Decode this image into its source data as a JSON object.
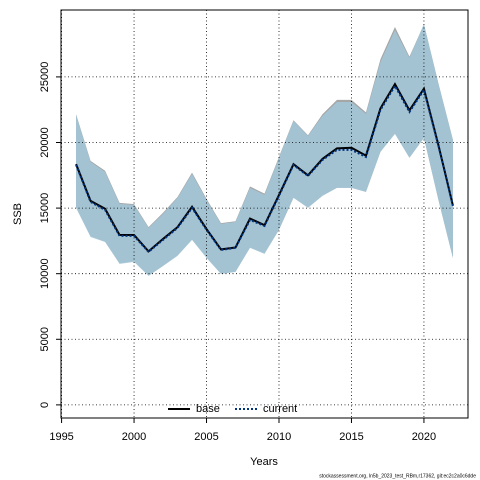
{
  "chart_data": {
    "type": "line",
    "xlabel": "Years",
    "ylabel": "SSB",
    "footnote": "stockassessment.org, ln5b_2023_test_RBm,r17362, git:ec2c2a0c6dde",
    "x": [
      1996,
      1997,
      1998,
      1999,
      2000,
      2001,
      2002,
      2003,
      2004,
      2005,
      2006,
      2007,
      2008,
      2009,
      2010,
      2011,
      2012,
      2013,
      2014,
      2015,
      2016,
      2017,
      2018,
      2019,
      2020,
      2021,
      2022
    ],
    "xlim": [
      1994.96,
      2023.04
    ],
    "xticks": [
      1995,
      2000,
      2005,
      2010,
      2015,
      2020
    ],
    "ylim": [
      -1000,
      30100
    ],
    "yticks": [
      0,
      5000,
      10000,
      15000,
      20000,
      25000
    ],
    "grid": true,
    "legend": "bottom",
    "series": [
      {
        "name": "base",
        "color": "#000000",
        "dash": "solid",
        "band_color": "#a6a6a6",
        "values": [
          18350,
          15550,
          14950,
          12950,
          12950,
          11700,
          12650,
          13550,
          15100,
          13400,
          11850,
          12000,
          14200,
          13700,
          16000,
          18350,
          17500,
          18750,
          19550,
          19600,
          19000,
          22600,
          24450,
          22450,
          24100,
          19800,
          15200
        ],
        "upper": [
          22150,
          18600,
          17850,
          15400,
          15300,
          13550,
          14650,
          15850,
          17700,
          15700,
          13850,
          14000,
          16650,
          16100,
          18900,
          21700,
          20550,
          22150,
          23250,
          23250,
          22300,
          26350,
          28800,
          26550,
          29000,
          24500,
          20200
        ],
        "lower": [
          15050,
          12850,
          12450,
          10800,
          10950,
          9850,
          10600,
          11400,
          12600,
          11250,
          10000,
          10150,
          12000,
          11550,
          13350,
          15800,
          15050,
          15950,
          16550,
          16550,
          16250,
          19300,
          20700,
          18850,
          20350,
          15630,
          11200
        ]
      },
      {
        "name": "current",
        "color": "#00337f",
        "dash": "dotted",
        "band_color": "#a3c6d8",
        "values": [
          18290,
          15470,
          14860,
          12880,
          12880,
          11660,
          12580,
          13490,
          15020,
          13340,
          11810,
          11970,
          14100,
          13640,
          15930,
          18290,
          17450,
          18670,
          19440,
          19440,
          18900,
          22480,
          24310,
          22330,
          24010,
          19740,
          15170
        ],
        "upper": [
          22100,
          18520,
          17760,
          15320,
          15240,
          13490,
          14560,
          15780,
          17610,
          15630,
          13800,
          13950,
          16540,
          16010,
          18830,
          21650,
          20500,
          22030,
          23090,
          23090,
          22180,
          26140,
          28580,
          26450,
          29040,
          24500,
          20200
        ],
        "lower": [
          15020,
          12800,
          12420,
          10750,
          10900,
          9830,
          10590,
          11360,
          12580,
          11200,
          9980,
          10140,
          11970,
          11510,
          13340,
          15780,
          15020,
          15930,
          16540,
          16540,
          16230,
          19280,
          20650,
          18830,
          20350,
          15630,
          11200
        ]
      }
    ]
  }
}
